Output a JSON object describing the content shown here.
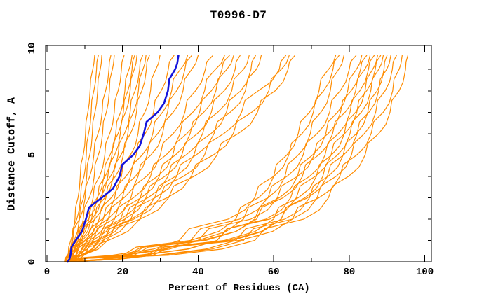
{
  "title": "T0996-D7",
  "chart_data": {
    "type": "line",
    "title": "T0996-D7",
    "xlabel": "Percent of Residues (CA)",
    "ylabel": "Distance Cutoff, A",
    "xlim": [
      0,
      102
    ],
    "ylim": [
      0,
      10.1
    ],
    "grid": false,
    "legend": "none",
    "x_major_ticks": [
      0,
      20,
      40,
      60,
      80,
      100
    ],
    "x_minor_ticks": [
      10,
      30,
      50,
      70,
      90
    ],
    "y_major_ticks": [
      0,
      5,
      10
    ],
    "y_minor_ticks": [
      1,
      2,
      3,
      4,
      6,
      7,
      8,
      9
    ],
    "colors": {
      "model": "#ff8c00",
      "highlight": "#1414dc",
      "axis": "#000000",
      "background": "#ffffff"
    },
    "cutoff_grid": [
      0,
      0.3,
      1,
      2,
      3,
      4,
      5,
      6,
      7,
      8,
      9,
      9.65
    ],
    "series": [
      {
        "role": "model",
        "percent": [
          5.0,
          5.6,
          6.3,
          7.4,
          8.2,
          8.8,
          9.6,
          10.2,
          10.8,
          11.4,
          12.1,
          12.6
        ]
      },
      {
        "role": "model",
        "percent": [
          4.8,
          5.5,
          6.6,
          7.9,
          8.9,
          9.8,
          10.4,
          11.0,
          11.7,
          12.4,
          13.1,
          13.6
        ]
      },
      {
        "role": "model",
        "percent": [
          5.2,
          6.0,
          7.2,
          8.6,
          9.7,
          10.5,
          11.3,
          12.0,
          12.7,
          13.4,
          14.1,
          14.5
        ]
      },
      {
        "role": "model",
        "percent": [
          4.6,
          5.4,
          6.8,
          8.6,
          10.1,
          11.3,
          12.4,
          13.5,
          14.6,
          15.5,
          16.4,
          16.9
        ]
      },
      {
        "role": "model",
        "percent": [
          5.5,
          6.4,
          7.8,
          9.6,
          11.2,
          12.5,
          13.6,
          14.7,
          15.7,
          16.5,
          17.3,
          17.8
        ]
      },
      {
        "role": "model",
        "percent": [
          5.0,
          6.1,
          7.9,
          10.3,
          12.2,
          13.9,
          15.3,
          16.6,
          17.8,
          18.8,
          19.7,
          20.4
        ]
      },
      {
        "role": "model",
        "percent": [
          5.3,
          6.5,
          8.5,
          11.1,
          13.3,
          15.1,
          16.7,
          18.2,
          19.5,
          20.6,
          21.7,
          22.5
        ]
      },
      {
        "role": "model",
        "percent": [
          4.7,
          6.0,
          8.2,
          11.0,
          13.4,
          15.4,
          17.2,
          18.8,
          20.2,
          21.4,
          22.5,
          23.2
        ]
      },
      {
        "role": "model",
        "percent": [
          5.6,
          6.9,
          9.0,
          11.8,
          14.1,
          16.1,
          17.9,
          19.4,
          20.8,
          22.0,
          23.1,
          23.8
        ]
      },
      {
        "role": "model",
        "percent": [
          5.0,
          6.4,
          8.8,
          11.9,
          14.5,
          16.8,
          18.8,
          20.5,
          22.0,
          23.3,
          24.5,
          25.3
        ]
      },
      {
        "role": "model",
        "percent": [
          5.4,
          6.9,
          9.4,
          12.6,
          15.3,
          17.6,
          19.6,
          21.4,
          22.9,
          24.2,
          25.4,
          26.2
        ]
      },
      {
        "role": "model",
        "percent": [
          4.9,
          6.5,
          9.2,
          12.7,
          15.6,
          18.1,
          20.2,
          22.1,
          23.7,
          25.1,
          26.3,
          27.1
        ]
      },
      {
        "role": "model",
        "percent": [
          5.2,
          7.0,
          10.0,
          13.8,
          17.0,
          19.7,
          22.1,
          24.1,
          25.9,
          27.4,
          28.8,
          29.9
        ]
      },
      {
        "role": "model",
        "percent": [
          5.8,
          7.5,
          10.6,
          14.6,
          17.9,
          20.9,
          23.6,
          26.0,
          28.2,
          30.2,
          32.1,
          33.6
        ]
      },
      {
        "role": "model",
        "percent": [
          5.1,
          7.0,
          10.4,
          14.9,
          18.7,
          22.1,
          25.2,
          28.0,
          30.6,
          33.0,
          35.3,
          37.2
        ]
      },
      {
        "role": "model",
        "percent": [
          6.0,
          8.0,
          11.5,
          16.1,
          20.0,
          23.4,
          26.5,
          29.3,
          31.9,
          34.3,
          36.5,
          38.3
        ]
      },
      {
        "role": "model",
        "percent": [
          5.4,
          7.6,
          11.3,
          16.2,
          20.4,
          24.1,
          27.5,
          30.6,
          33.4,
          36.0,
          38.3,
          40.0
        ]
      },
      {
        "role": "model",
        "percent": [
          5.7,
          8.1,
          12.2,
          17.6,
          22.2,
          26.3,
          30.0,
          33.4,
          36.5,
          39.3,
          41.9,
          43.9
        ]
      },
      {
        "role": "model",
        "percent": [
          5.0,
          7.7,
          12.1,
          17.9,
          22.9,
          27.4,
          31.5,
          35.2,
          38.6,
          41.7,
          44.6,
          47.0
        ]
      },
      {
        "role": "model",
        "percent": [
          6.2,
          9.0,
          13.6,
          19.6,
          24.7,
          29.2,
          33.3,
          37.0,
          40.4,
          43.5,
          46.3,
          48.3
        ]
      },
      {
        "role": "model",
        "percent": [
          5.5,
          8.4,
          13.2,
          19.5,
          24.9,
          29.7,
          34.0,
          37.9,
          41.5,
          44.7,
          47.6,
          49.4
        ]
      },
      {
        "role": "model",
        "percent": [
          5.9,
          8.9,
          14.0,
          20.6,
          26.2,
          31.2,
          35.7,
          39.8,
          43.5,
          46.9,
          49.8,
          51.1
        ]
      },
      {
        "role": "model",
        "percent": [
          5.2,
          8.4,
          13.7,
          20.7,
          26.7,
          32.0,
          36.8,
          41.2,
          45.2,
          48.9,
          52.0,
          53.5
        ]
      },
      {
        "role": "model",
        "percent": [
          6.1,
          9.4,
          15.0,
          22.3,
          28.5,
          34.0,
          38.9,
          43.4,
          47.5,
          51.3,
          54.0,
          55.2
        ]
      },
      {
        "role": "model",
        "percent": [
          5.6,
          9.0,
          14.7,
          22.2,
          28.6,
          34.3,
          39.5,
          44.2,
          48.5,
          52.5,
          55.4,
          56.7
        ]
      },
      {
        "role": "model",
        "percent": [
          5.3,
          8.9,
          15.0,
          23.0,
          29.9,
          36.1,
          41.7,
          46.8,
          51.5,
          55.9,
          61.5,
          63.2
        ]
      },
      {
        "role": "model",
        "percent": [
          6.0,
          9.8,
          16.2,
          24.6,
          31.8,
          38.2,
          44.0,
          49.3,
          54.2,
          58.7,
          62.0,
          64.1
        ]
      },
      {
        "role": "model",
        "percent": [
          5.5,
          9.5,
          16.0,
          24.7,
          32.2,
          38.9,
          45.0,
          50.6,
          55.7,
          60.4,
          63.8,
          65.6
        ]
      },
      {
        "role": "model",
        "percent": [
          5.5,
          20,
          38,
          50,
          56,
          60,
          63.5,
          66.5,
          69.5,
          72,
          74.5,
          76.4
        ]
      },
      {
        "role": "model",
        "percent": [
          5.0,
          17,
          35,
          48,
          55,
          60,
          64,
          67.5,
          70.5,
          73.2,
          75.7,
          77.3
        ]
      },
      {
        "role": "model",
        "percent": [
          5.8,
          22,
          40,
          52,
          58.5,
          63,
          66.5,
          69.7,
          72.5,
          75,
          77.2,
          78.6
        ]
      },
      {
        "role": "model",
        "percent": [
          5.2,
          19,
          38,
          51,
          58.5,
          63.5,
          67.8,
          71.5,
          74.8,
          77.6,
          80.0,
          81.8
        ]
      },
      {
        "role": "model",
        "percent": [
          5.6,
          23,
          42,
          55,
          61.5,
          66.3,
          70.3,
          73.8,
          76.9,
          79.6,
          81.9,
          83.3
        ]
      },
      {
        "role": "model",
        "percent": [
          5.1,
          20,
          40,
          54,
          61,
          66.3,
          70.7,
          74.4,
          77.7,
          80.5,
          83.0,
          84.6
        ]
      },
      {
        "role": "model",
        "percent": [
          5.2,
          21,
          41,
          55.5,
          62.5,
          67.6,
          71.9,
          75.6,
          78.9,
          81.7,
          84.1,
          85.5
        ]
      },
      {
        "role": "model",
        "percent": [
          5.4,
          25,
          45,
          58,
          64.5,
          69.5,
          73.6,
          77.1,
          80.2,
          82.8,
          85.1,
          86.6
        ]
      },
      {
        "role": "model",
        "percent": [
          5.9,
          27,
          47,
          60,
          66.5,
          71.3,
          75.3,
          78.7,
          81.7,
          84.2,
          86.2,
          87.5
        ]
      },
      {
        "role": "model",
        "percent": [
          5.3,
          24,
          45,
          59,
          66,
          71,
          75.2,
          78.8,
          82,
          84.6,
          86.9,
          88.3
        ]
      },
      {
        "role": "model",
        "percent": [
          5.7,
          28,
          49,
          62,
          68.3,
          73,
          76.9,
          80.2,
          83.2,
          85.7,
          87.8,
          89.0
        ]
      },
      {
        "role": "model",
        "percent": [
          5.4,
          29,
          50,
          63,
          69.5,
          74.4,
          78.4,
          81.9,
          84.9,
          87.4,
          89.2,
          90.0
        ]
      },
      {
        "role": "model",
        "percent": [
          5.2,
          26,
          48,
          62,
          69,
          74.2,
          78.5,
          82.1,
          85.2,
          87.8,
          89.9,
          91.0
        ]
      },
      {
        "role": "model",
        "percent": [
          5.6,
          30,
          52,
          65,
          71.5,
          76.5,
          80.6,
          84.0,
          87.0,
          89.5,
          91.4,
          92.5
        ]
      },
      {
        "role": "model",
        "percent": [
          5.0,
          28,
          51,
          65,
          72,
          77.5,
          82,
          85.8,
          89,
          91.5,
          93.2,
          94.0
        ]
      },
      {
        "role": "model",
        "percent": [
          5.5,
          32,
          55,
          68,
          74.5,
          79.8,
          84.2,
          87.8,
          90.8,
          93.2,
          94.9,
          95.5
        ]
      },
      {
        "role": "highlight",
        "percent": [
          5.5,
          6.2,
          7.6,
          10.3,
          14.5,
          19.2,
          22.8,
          25.6,
          29.3,
          32.0,
          33.9,
          34.8
        ]
      }
    ]
  }
}
